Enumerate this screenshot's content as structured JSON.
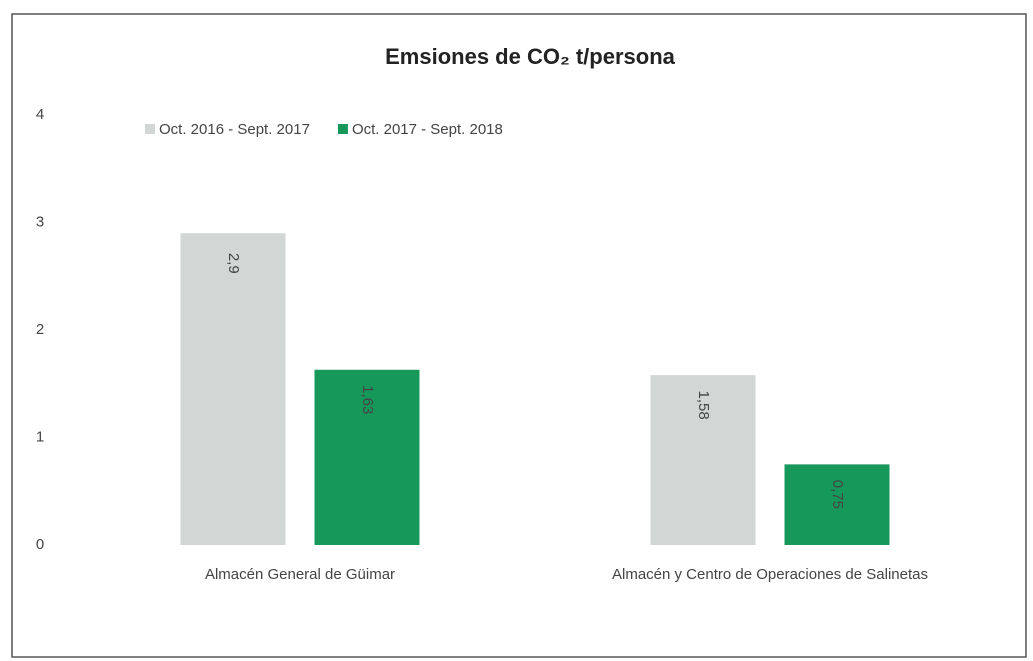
{
  "chart_data": {
    "type": "bar",
    "title": "Emsiones de CO₂ t/persona",
    "categories": [
      "Almacén General de Güimar",
      "Almacén y Centro de Operaciones de Salinetas"
    ],
    "series": [
      {
        "name": "Oct. 2016 - Sept. 2017",
        "color": "#d2d6d5",
        "values": [
          2.9,
          1.58
        ],
        "value_labels": [
          "2,9",
          "1,58"
        ]
      },
      {
        "name": "Oct. 2017 - Sept. 2018",
        "color": "#16985a",
        "values": [
          1.63,
          0.75
        ],
        "value_labels": [
          "1,63",
          "0,75"
        ]
      }
    ],
    "ylim": [
      0,
      4
    ],
    "yticks": [
      0,
      1,
      2,
      3,
      4
    ],
    "grid": false,
    "legend": "top-left"
  }
}
